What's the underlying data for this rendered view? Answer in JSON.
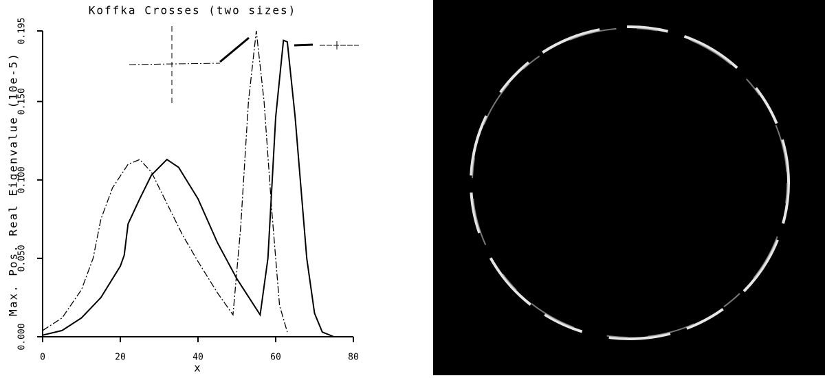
{
  "chart_data": {
    "type": "line",
    "title": "Koffka Crosses (two sizes)",
    "x_label": "x",
    "y_label": "Max. Pos. Real Eigenvalue (10e-5)",
    "xlim": [
      0,
      80
    ],
    "xticks": [
      0,
      20,
      40,
      60,
      80
    ],
    "ylim": [
      0,
      0.195
    ],
    "yticks": [
      {
        "value": 0,
        "label": "0.000"
      },
      {
        "value": 0.05,
        "label": "0.050"
      },
      {
        "value": 0.1,
        "label": "0.100"
      },
      {
        "value": 0.15,
        "label": "0.150"
      },
      {
        "value": 0.195,
        "label": "0.195"
      }
    ],
    "series": [
      {
        "color": "#000000",
        "line_style": "solid",
        "x": [
          0,
          5,
          10,
          15,
          20,
          21,
          22,
          25,
          28,
          32,
          35,
          40,
          45,
          50,
          56,
          58,
          60,
          62,
          63,
          65,
          68,
          70,
          72,
          75
        ],
        "values": [
          0.001,
          0.004,
          0.012,
          0.025,
          0.045,
          0.052,
          0.072,
          0.088,
          0.103,
          0.113,
          0.108,
          0.088,
          0.06,
          0.037,
          0.014,
          0.05,
          0.14,
          0.189,
          0.188,
          0.14,
          0.05,
          0.015,
          0.003,
          0
        ]
      },
      {
        "color": "#000000",
        "line_style": "dashdot",
        "x": [
          0,
          5,
          10,
          13,
          15,
          18,
          22,
          25,
          28,
          32,
          36,
          40,
          45,
          49,
          51,
          53,
          55,
          57,
          59,
          61,
          63
        ],
        "values": [
          0.004,
          0.012,
          0.03,
          0.05,
          0.075,
          0.095,
          0.11,
          0.113,
          0.105,
          0.085,
          0.065,
          0.048,
          0.028,
          0.014,
          0.07,
          0.15,
          0.195,
          0.15,
          0.08,
          0.02,
          0.003
        ]
      }
    ]
  }
}
